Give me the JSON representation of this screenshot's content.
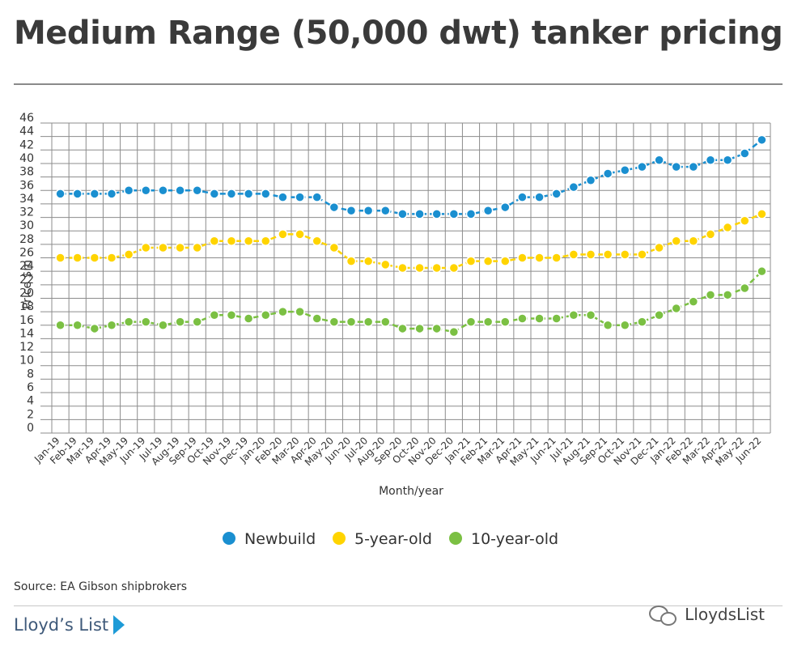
{
  "header": {
    "title": "Medium Range (50,000 dwt) tanker pricing"
  },
  "footer": {
    "source": "Source: EA Gibson shipbrokers",
    "brand": "Lloyd’s List",
    "watermark": "LloydsList"
  },
  "colors": {
    "newbuild": "#1a8fd0",
    "five_year": "#ffd400",
    "ten_year": "#7bc043",
    "grid": "#8c8c8c"
  },
  "chart_data": {
    "type": "line",
    "title": "Medium Range (50,000 dwt) tanker pricing",
    "xlabel": "Month/year",
    "ylabel": "Price $m",
    "ylim": [
      0,
      46
    ],
    "yticks": [
      0,
      2,
      4,
      6,
      8,
      10,
      12,
      14,
      16,
      18,
      20,
      22,
      24,
      26,
      28,
      30,
      32,
      34,
      36,
      38,
      40,
      42,
      44,
      46
    ],
    "grid": true,
    "legend_position": "bottom",
    "categories": [
      "Jan-19",
      "Feb-19",
      "Mar-19",
      "Apr-19",
      "May-19",
      "Jun-19",
      "Jul-19",
      "Aug-19",
      "Sep-19",
      "Oct-19",
      "Nov-19",
      "Dec-19",
      "Jan-20",
      "Feb-20",
      "Mar-20",
      "Apr-20",
      "May-20",
      "Jun-20",
      "Jul-20",
      "Aug-20",
      "Sep-20",
      "Oct-20",
      "Nov-20",
      "Dec-20",
      "Jan-21",
      "Feb-21",
      "Mar-21",
      "Apr-21",
      "May-21",
      "Jun-21",
      "Jul-21",
      "Aug-21",
      "Sep-21",
      "Oct-21",
      "Nov-21",
      "Dec-21",
      "Jan-22",
      "Feb-22",
      "Mar-22",
      "Apr-22",
      "May-22",
      "Jun-22"
    ],
    "series": [
      {
        "name": "Newbuild",
        "color": "#1a8fd0",
        "values": [
          35.5,
          35.5,
          35.5,
          35.5,
          36,
          36,
          36,
          36,
          36,
          35.5,
          35.5,
          35.5,
          35.5,
          35,
          35,
          35,
          33.5,
          33,
          33,
          33,
          32.5,
          32.5,
          32.5,
          32.5,
          32.5,
          33,
          33.5,
          35,
          35,
          35.5,
          36.5,
          37.5,
          38.5,
          39,
          39.5,
          40.5,
          39.5,
          39.5,
          40.5,
          40.5,
          41.5,
          43.5
        ]
      },
      {
        "name": "5-year-old",
        "color": "#ffd400",
        "values": [
          26,
          26,
          26,
          26,
          26.5,
          27.5,
          27.5,
          27.5,
          27.5,
          28.5,
          28.5,
          28.5,
          28.5,
          29.5,
          29.5,
          28.5,
          27.5,
          25.5,
          25.5,
          25,
          24.5,
          24.5,
          24.5,
          24.5,
          25.5,
          25.5,
          25.5,
          26,
          26,
          26,
          26.5,
          26.5,
          26.5,
          26.5,
          26.5,
          27.5,
          28.5,
          28.5,
          29.5,
          30.5,
          31.5,
          32.5
        ]
      },
      {
        "name": "10-year-old",
        "color": "#7bc043",
        "values": [
          16,
          16,
          15.5,
          16,
          16.5,
          16.5,
          16,
          16.5,
          16.5,
          17.5,
          17.5,
          17,
          17.5,
          18,
          18,
          17,
          16.5,
          16.5,
          16.5,
          16.5,
          15.5,
          15.5,
          15.5,
          15,
          16.5,
          16.5,
          16.5,
          17,
          17,
          17,
          17.5,
          17.5,
          16,
          16,
          16.5,
          17.5,
          18.5,
          19.5,
          20.5,
          20.5,
          21.5,
          24
        ]
      }
    ]
  }
}
